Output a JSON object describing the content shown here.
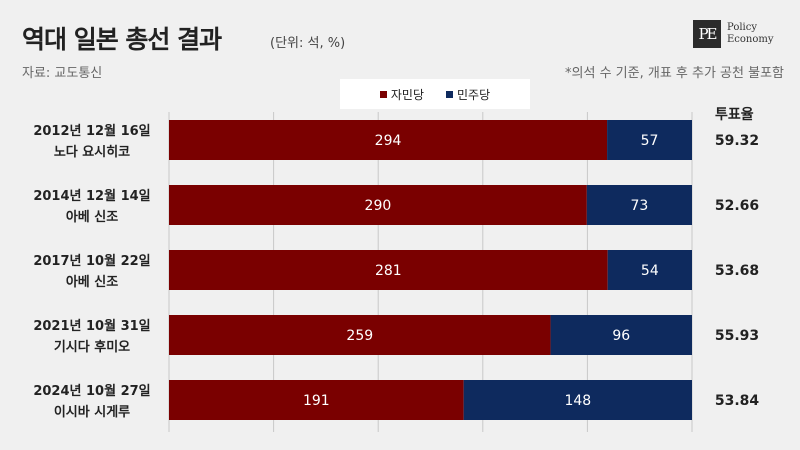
{
  "header": {
    "title": "역대 일본 총선 결과",
    "unit": "(단위: 석, %)",
    "source": "자료: 교도통신",
    "note": "*의석 수 기준, 개표 후 추가 공천 불포함",
    "logo_mark": "PE",
    "logo_line1": "Policy",
    "logo_line2": "Economy"
  },
  "colors": {
    "ldp": "#7a0000",
    "cdp": "#0e2a5e",
    "grid": "#c8c8c8"
  },
  "chart_data": {
    "type": "bar",
    "orientation": "horizontal",
    "stacked": true,
    "categories": [
      [
        "2012년 12월 16일",
        "노다 요시히코"
      ],
      [
        "2014년 12월 14일",
        "아베 신조"
      ],
      [
        "2017년 10월 22일",
        "아베 신조"
      ],
      [
        "2021년 10월 31일",
        "기시다 후미오"
      ],
      [
        "2024년 10월 27일",
        "이시바 시게루"
      ]
    ],
    "series": [
      {
        "name": "자민당",
        "values": [
          294,
          290,
          281,
          259,
          191
        ]
      },
      {
        "name": "민주당",
        "values": [
          57,
          73,
          54,
          96,
          148
        ]
      }
    ],
    "turnout_label": "투표율",
    "turnout": [
      "59.32",
      "52.66",
      "53.68",
      "55.93",
      "53.84"
    ],
    "legend_position": "top-center",
    "grid": true
  }
}
